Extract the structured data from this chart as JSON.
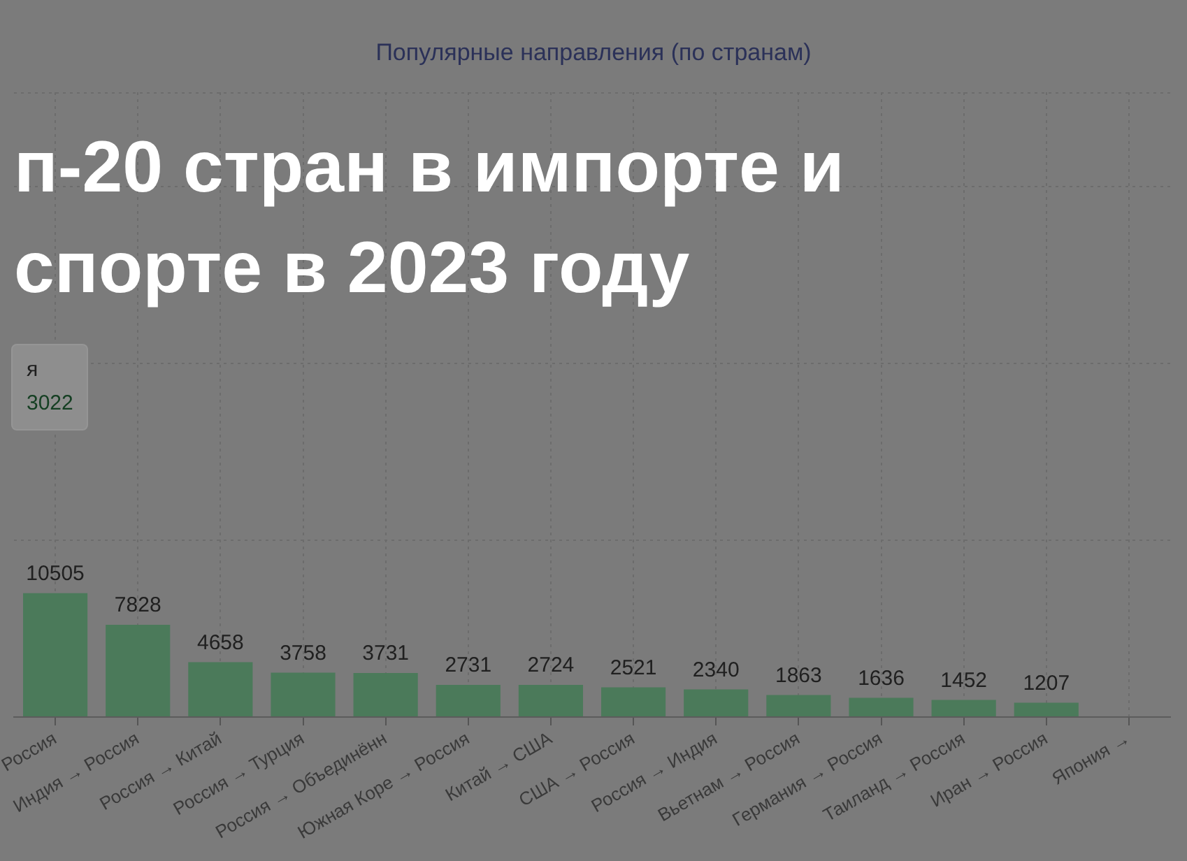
{
  "chart_data": {
    "type": "bar",
    "title": "Популярные направления (по странам)",
    "subtitle": "п-20 стран в импорте и спорте в 2023 году",
    "categories": [
      "Россия",
      "Индия → Россия",
      "Россия → Китай",
      "Россия → Турция",
      "Россия → Объединённ",
      "Южная Коре → Россия",
      "Китай → США",
      "США → Россия",
      "Россия → Индия",
      "Вьетнам → Россия",
      "Германия → Россия",
      "Таиланд → Россия",
      "Иран → Россия",
      "Япония →"
    ],
    "values": [
      10505,
      7828,
      4658,
      3758,
      3731,
      2731,
      2724,
      2521,
      2340,
      1863,
      1636,
      1452,
      1207,
      null
    ],
    "color": "#4b7a5a",
    "ylim": [
      0,
      53000
    ],
    "yticks": [
      {
        "value": 0,
        "label": null
      },
      {
        "value": 15000,
        "label": null
      },
      {
        "value": 30000,
        "label": null
      },
      {
        "value": 45000,
        "label": null
      }
    ],
    "tick_labels": "x",
    "grid": true,
    "data_labels": true,
    "annotations": [
      "я",
      "3022"
    ]
  }
}
